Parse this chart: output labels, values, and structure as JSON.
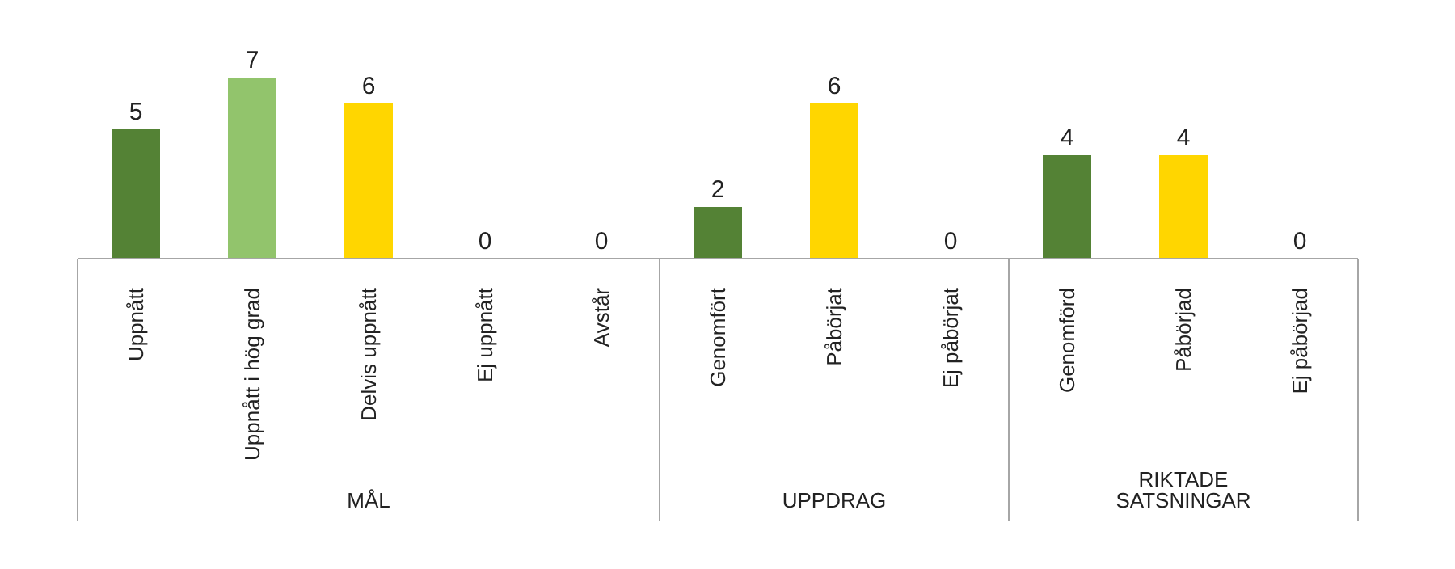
{
  "chart_data": {
    "type": "bar",
    "categories": [
      "Uppnått",
      "Uppnått i hög grad",
      "Delvis uppnått",
      "Ej uppnått",
      "Avstår",
      "Genomfört",
      "Påbörjat",
      "Ej påbörjat",
      "Genomförd",
      "Påbörjad",
      "Ej påbörjad"
    ],
    "values": [
      5,
      7,
      6,
      0,
      0,
      2,
      6,
      0,
      4,
      4,
      0
    ],
    "colors": [
      "#548235",
      "#92c46c",
      "#ffd600",
      "#c00000",
      "#a5a5a5",
      "#548235",
      "#ffd600",
      "#c00000",
      "#548235",
      "#ffd600",
      "#c00000"
    ],
    "data_labels": true,
    "annotations": [
      "MÅL",
      "UPPDRAG",
      "RIKTADE SATSNINGAR"
    ]
  }
}
